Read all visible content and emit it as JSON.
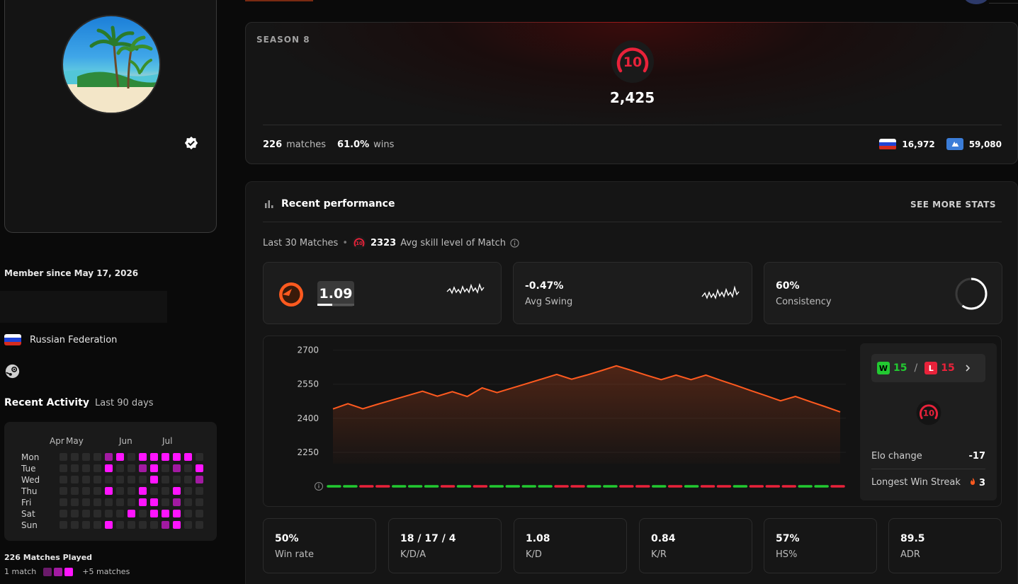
{
  "profile": {
    "member_since": "Member since May 17, 2026",
    "country": "Russian Federation",
    "colors": {
      "flag_white": "#ffffff",
      "flag_blue": "#1f43d6",
      "flag_red": "#d52b1e"
    }
  },
  "activity": {
    "title": "Recent Activity",
    "subtitle": "Last 90 days",
    "months": [
      "Apr",
      "May",
      "Jun",
      "Jul"
    ],
    "days": [
      "Mon",
      "Tue",
      "Wed",
      "Thu",
      "Fri",
      "Sat",
      "Sun"
    ],
    "grid": [
      [
        0,
        0,
        0,
        0,
        2,
        3,
        0,
        3,
        3,
        3,
        3,
        3,
        0,
        0
      ],
      [
        0,
        0,
        0,
        0,
        3,
        0,
        0,
        2,
        3,
        0,
        2,
        0,
        3,
        0
      ],
      [
        0,
        0,
        0,
        0,
        0,
        0,
        0,
        0,
        3,
        0,
        0,
        0,
        2,
        0
      ],
      [
        0,
        0,
        0,
        0,
        3,
        0,
        0,
        3,
        0,
        0,
        3,
        0,
        0,
        0
      ],
      [
        0,
        0,
        0,
        0,
        0,
        0,
        0,
        3,
        3,
        0,
        2,
        0,
        0,
        0
      ],
      [
        0,
        0,
        0,
        0,
        0,
        0,
        3,
        0,
        3,
        3,
        3,
        0,
        0,
        0
      ],
      [
        0,
        0,
        0,
        0,
        3,
        0,
        0,
        0,
        0,
        2,
        3,
        0,
        0,
        0
      ]
    ],
    "matches_played": "226 Matches Played",
    "legend_min": "1 match",
    "legend_max": "+5 matches",
    "colors": {
      "empty": "#2b2b2b",
      "low": "#6a1a6a",
      "mid": "#a21aa2",
      "high": "#ff14ff"
    }
  },
  "season": {
    "label": "SEASON 8",
    "level": "10",
    "elo": "2,425",
    "matches_count": "226",
    "matches_label": "matches",
    "win_pct": "61.0%",
    "wins_label": "wins",
    "country_rank": "16,972",
    "region_rank": "59,080",
    "colors": {
      "level_ring": "#e8223a"
    }
  },
  "performance": {
    "title": "Recent performance",
    "see_more": "SEE MORE STATS",
    "last_matches": "Last 30 Matches",
    "avg_level_icon": "10",
    "avg_skill": "2323",
    "avg_skill_label": "Avg skill level of Match",
    "rating": "1.09",
    "rating_fill": 0.4,
    "avg_swing": "-0.47%",
    "avg_swing_label": "Avg Swing",
    "consistency": "60%",
    "consistency_label": "Consistency",
    "consistency_value": 0.6,
    "wins": "15",
    "losses": "15",
    "w_tag": "W",
    "l_tag": "L",
    "slash": "/",
    "side_level": "10",
    "elo_change_label": "Elo change",
    "elo_change": "-17",
    "streak_label": "Longest Win Streak",
    "streak": "3",
    "stats": [
      {
        "value": "50%",
        "label": "Win rate"
      },
      {
        "value": "18 / 17 / 4",
        "label": "K/D/A"
      },
      {
        "value": "1.08",
        "label": "K/D"
      },
      {
        "value": "0.84",
        "label": "K/R"
      },
      {
        "value": "57%",
        "label": "HS%"
      },
      {
        "value": "89.5",
        "label": "ADR"
      }
    ],
    "colors": {
      "accent": "#ff5a1f",
      "win": "#22c931",
      "loss": "#e8223a"
    }
  },
  "chart_data": {
    "type": "line",
    "title": "",
    "xlabel": "",
    "ylabel": "",
    "ylim": [
      2200,
      2730
    ],
    "yticks": [
      2700,
      2550,
      2400,
      2250
    ],
    "values": [
      2441,
      2464,
      2442,
      2462,
      2481,
      2500,
      2519,
      2497,
      2517,
      2496,
      2534,
      2513,
      2533,
      2553,
      2573,
      2593,
      2572,
      2590,
      2610,
      2631,
      2611,
      2590,
      2570,
      2590,
      2570,
      2590,
      2567,
      2545,
      2522,
      2500,
      2477,
      2496,
      2473,
      2451,
      2428
    ],
    "results": [
      "W",
      "W",
      "L",
      "L",
      "W",
      "W",
      "W",
      "L",
      "W",
      "L",
      "W",
      "W",
      "W",
      "W",
      "L",
      "L",
      "W",
      "W",
      "L",
      "L",
      "W",
      "L",
      "W",
      "L",
      "L",
      "W",
      "L",
      "L",
      "L",
      "W",
      "W",
      "L"
    ],
    "grid": true
  }
}
